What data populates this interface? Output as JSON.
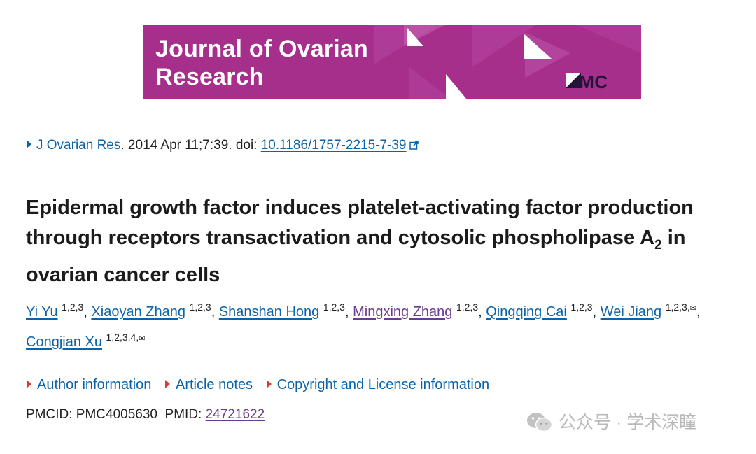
{
  "banner": {
    "journal_line1": "Journal of Ovarian",
    "journal_line2": "Research",
    "publisher": "BMC",
    "bg_color": "#a72f8c"
  },
  "citation": {
    "journal_link": "J Ovarian Res",
    "date_volume": ". 2014 Apr 11;7:39. doi: ",
    "doi": "10.1186/1757-2215-7-39",
    "icon": "external-link-icon"
  },
  "article": {
    "title_part1": "Epidermal growth factor induces platelet-activating factor production through receptors transactivation and cytosolic phospholipase A",
    "title_sub": "2",
    "title_part2": " in ovarian cancer cells"
  },
  "authors": [
    {
      "name": "Yi Yu",
      "aff": "1,2,3",
      "sep": ", "
    },
    {
      "name": "Xiaoyan Zhang",
      "aff": "1,2,3",
      "sep": ", "
    },
    {
      "name": "Shanshan Hong",
      "aff": "1,2,3",
      "sep": ", "
    },
    {
      "name": "Mingxing Zhang",
      "aff": "1,2,3",
      "sep": ", "
    },
    {
      "name": "Qingqing Cai",
      "aff": "1,2,3",
      "sep": ", "
    },
    {
      "name": "Wei Jiang",
      "aff": "1,2,3,",
      "env": "✉",
      "sep": ", "
    },
    {
      "name": "Congjian Xu",
      "aff": "1,2,3,4,",
      "env": "✉",
      "sep": ""
    }
  ],
  "info_links": {
    "author_info": "Author information",
    "article_notes": "Article notes",
    "copyright": "Copyright and License information"
  },
  "ids": {
    "pmcid_label": "PMCID: ",
    "pmcid": "PMC4005630",
    "pmid_label": "PMID: ",
    "pmid": "24721622"
  },
  "watermark": {
    "text": "公众号 · 学术深瞳",
    "icon": "wechat-icon"
  },
  "colors": {
    "link": "#0b63a8",
    "visited_link": "#6a3c8f",
    "expand_arrow": "#d83933"
  }
}
